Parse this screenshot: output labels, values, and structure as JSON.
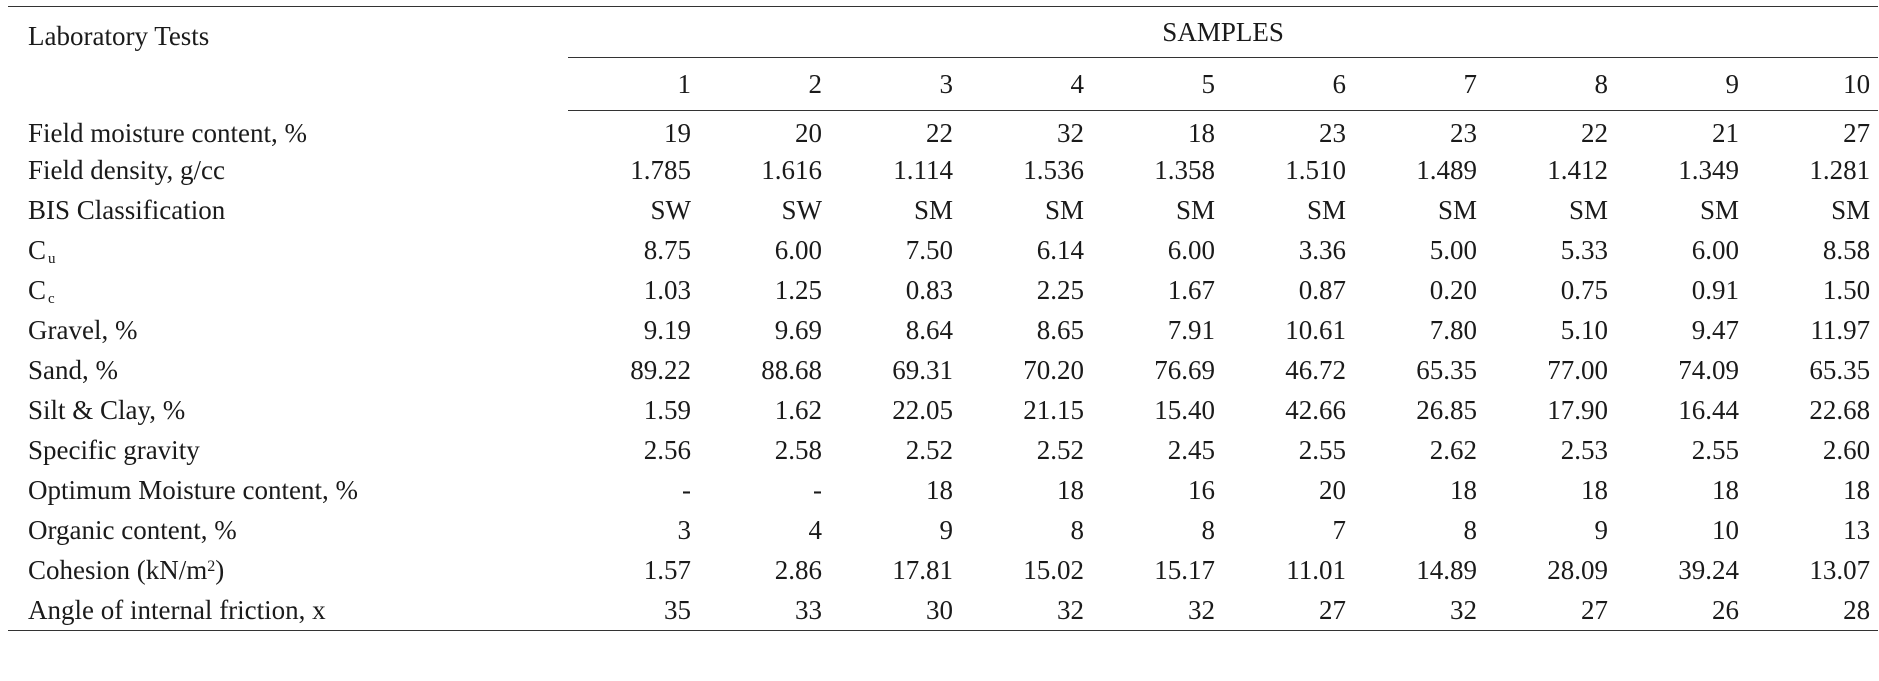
{
  "table": {
    "label_header": "Laboratory Tests",
    "group_header": "SAMPLES",
    "sample_numbers": [
      "1",
      "2",
      "3",
      "4",
      "5",
      "6",
      "7",
      "8",
      "9",
      "10"
    ],
    "rows": [
      {
        "label": "Field moisture content, %",
        "values": [
          "19",
          "20",
          "22",
          "32",
          "18",
          "23",
          "23",
          "22",
          "21",
          "27"
        ]
      },
      {
        "label": "Field density, g/cc",
        "values": [
          "1.785",
          "1.616",
          "1.114",
          "1.536",
          "1.358",
          "1.510",
          "1.489",
          "1.412",
          "1.349",
          "1.281"
        ]
      },
      {
        "label": "BIS Classification",
        "values": [
          "SW",
          "SW",
          "SM",
          "SM",
          "SM",
          "SM",
          "SM",
          "SM",
          "SM",
          "SM"
        ]
      },
      {
        "label": "C",
        "sub": "u",
        "values": [
          "8.75",
          "6.00",
          "7.50",
          "6.14",
          "6.00",
          "3.36",
          "5.00",
          "5.33",
          "6.00",
          "8.58"
        ]
      },
      {
        "label": "C",
        "sub": "c",
        "values": [
          "1.03",
          "1.25",
          "0.83",
          "2.25",
          "1.67",
          "0.87",
          "0.20",
          "0.75",
          "0.91",
          "1.50"
        ]
      },
      {
        "label": "Gravel, %",
        "values": [
          "9.19",
          "9.69",
          "8.64",
          "8.65",
          "7.91",
          "10.61",
          "7.80",
          "5.10",
          "9.47",
          "11.97"
        ]
      },
      {
        "label": "Sand, %",
        "values": [
          "89.22",
          "88.68",
          "69.31",
          "70.20",
          "76.69",
          "46.72",
          "65.35",
          "77.00",
          "74.09",
          "65.35"
        ]
      },
      {
        "label": "Silt & Clay, %",
        "values": [
          "1.59",
          "1.62",
          "22.05",
          "21.15",
          "15.40",
          "42.66",
          "26.85",
          "17.90",
          "16.44",
          "22.68"
        ]
      },
      {
        "label": "Specific gravity",
        "values": [
          "2.56",
          "2.58",
          "2.52",
          "2.52",
          "2.45",
          "2.55",
          "2.62",
          "2.53",
          "2.55",
          "2.60"
        ]
      },
      {
        "label": "Optimum Moisture content, %",
        "values": [
          "-",
          "-",
          "18",
          "18",
          "16",
          "20",
          "18",
          "18",
          "18",
          "18"
        ]
      },
      {
        "label": "Organic content, %",
        "values": [
          "3",
          "4",
          "9",
          "8",
          "8",
          "7",
          "8",
          "9",
          "10",
          "13"
        ]
      },
      {
        "label": "Cohesion (kN/m",
        "sup": "2",
        "suffix": ")",
        "values": [
          "1.57",
          "2.86",
          "17.81",
          "15.02",
          "15.17",
          "11.01",
          "14.89",
          "28.09",
          "39.24",
          "13.07"
        ]
      },
      {
        "label": "Angle of internal friction, x",
        "values": [
          "35",
          "33",
          "30",
          "32",
          "32",
          "27",
          "32",
          "27",
          "26",
          "28"
        ]
      }
    ]
  }
}
